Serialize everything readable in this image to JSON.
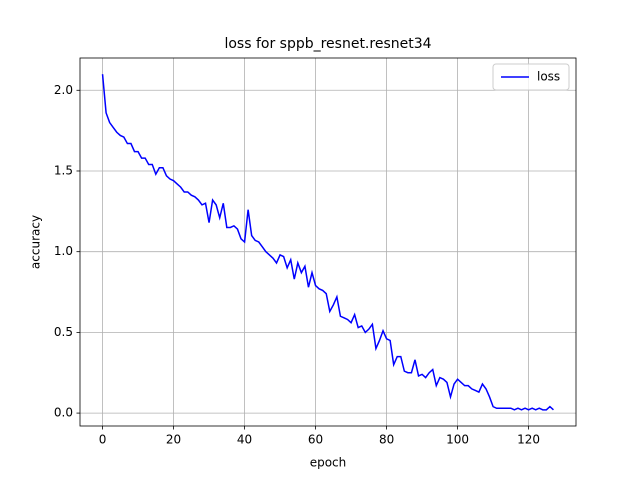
{
  "chart_data": {
    "type": "line",
    "title": "loss for sppb_resnet.resnet34",
    "x_label": "epoch",
    "y_label": "accuracy",
    "x": [
      0,
      1,
      2,
      3,
      4,
      5,
      6,
      7,
      8,
      9,
      10,
      11,
      12,
      13,
      14,
      15,
      16,
      17,
      18,
      19,
      20,
      21,
      22,
      23,
      24,
      25,
      26,
      27,
      28,
      29,
      30,
      31,
      32,
      33,
      34,
      35,
      36,
      37,
      38,
      39,
      40,
      41,
      42,
      43,
      44,
      45,
      46,
      47,
      48,
      49,
      50,
      51,
      52,
      53,
      54,
      55,
      56,
      57,
      58,
      59,
      60,
      61,
      62,
      63,
      64,
      65,
      66,
      67,
      68,
      69,
      70,
      71,
      72,
      73,
      74,
      75,
      76,
      77,
      78,
      79,
      80,
      81,
      82,
      83,
      84,
      85,
      86,
      87,
      88,
      89,
      90,
      91,
      92,
      93,
      94,
      95,
      96,
      97,
      98,
      99,
      100,
      101,
      102,
      103,
      104,
      105,
      106,
      107,
      108,
      109,
      110,
      111,
      112,
      113,
      114,
      115,
      116,
      117,
      118,
      119,
      120,
      121,
      122,
      123,
      124,
      125,
      126,
      127
    ],
    "series": [
      {
        "name": "loss",
        "color": "#0000ff",
        "values": [
          2.1,
          1.86,
          1.8,
          1.77,
          1.74,
          1.72,
          1.71,
          1.67,
          1.67,
          1.62,
          1.62,
          1.58,
          1.58,
          1.54,
          1.54,
          1.48,
          1.52,
          1.52,
          1.47,
          1.45,
          1.44,
          1.42,
          1.4,
          1.37,
          1.37,
          1.35,
          1.34,
          1.32,
          1.29,
          1.3,
          1.18,
          1.32,
          1.29,
          1.21,
          1.3,
          1.15,
          1.15,
          1.16,
          1.14,
          1.08,
          1.06,
          1.26,
          1.1,
          1.07,
          1.06,
          1.03,
          1.0,
          0.98,
          0.96,
          0.93,
          0.98,
          0.97,
          0.9,
          0.95,
          0.83,
          0.93,
          0.87,
          0.91,
          0.78,
          0.87,
          0.79,
          0.77,
          0.76,
          0.74,
          0.63,
          0.67,
          0.72,
          0.6,
          0.59,
          0.58,
          0.56,
          0.61,
          0.53,
          0.54,
          0.5,
          0.52,
          0.55,
          0.4,
          0.45,
          0.51,
          0.46,
          0.45,
          0.3,
          0.35,
          0.35,
          0.26,
          0.25,
          0.25,
          0.33,
          0.23,
          0.24,
          0.22,
          0.25,
          0.27,
          0.17,
          0.22,
          0.21,
          0.19,
          0.1,
          0.18,
          0.21,
          0.19,
          0.17,
          0.17,
          0.15,
          0.14,
          0.13,
          0.18,
          0.15,
          0.1,
          0.04,
          0.03,
          0.03,
          0.03,
          0.03,
          0.03,
          0.02,
          0.03,
          0.02,
          0.03,
          0.02,
          0.03,
          0.02,
          0.03,
          0.02,
          0.02,
          0.04,
          0.02
        ]
      }
    ],
    "xlim": [
      -6.35,
      133.35
    ],
    "ylim": [
      -0.08,
      2.2
    ],
    "xticks": [
      0,
      20,
      40,
      60,
      80,
      100,
      120
    ],
    "yticks": [
      {
        "value": 0,
        "label": "0.0"
      },
      0.5,
      {
        "value": 1,
        "label": "1.0"
      },
      1.5,
      {
        "value": 2,
        "label": "2.0"
      }
    ],
    "grid": true,
    "legend": "upper right"
  }
}
